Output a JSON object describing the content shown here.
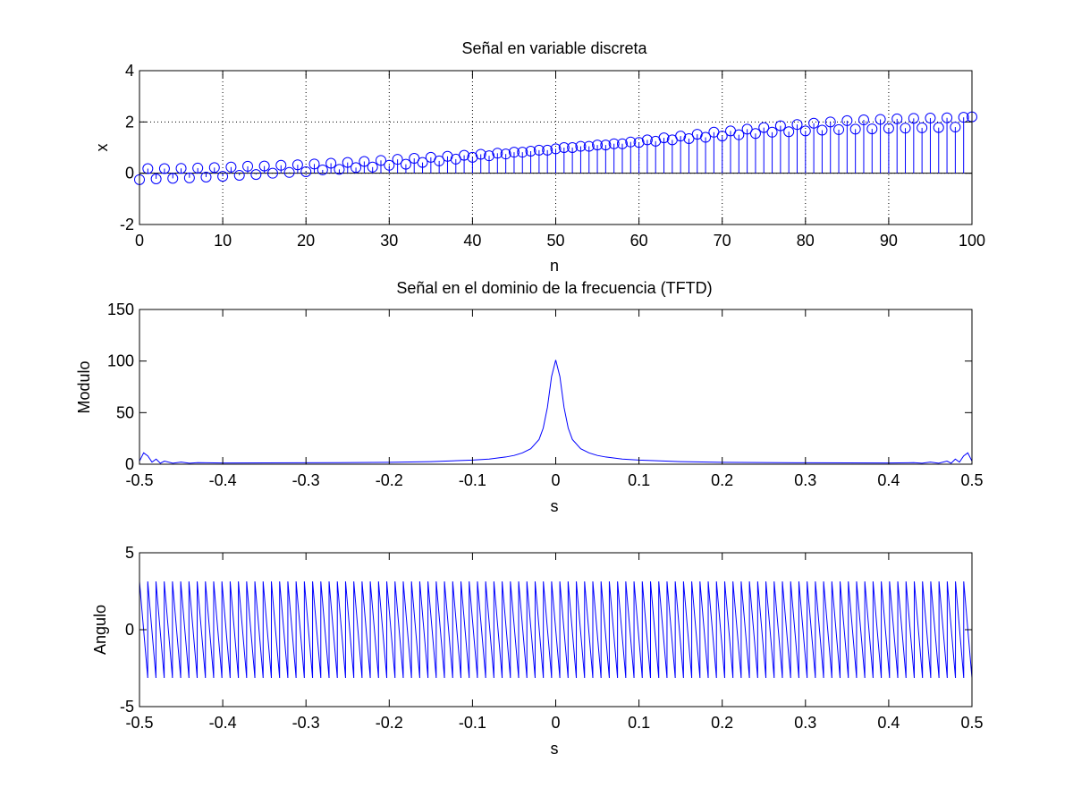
{
  "chart_data": [
    {
      "type": "stem",
      "title": "Señal en variable discreta",
      "xlabel": "n",
      "ylabel": "x",
      "xlim": [
        0,
        100
      ],
      "ylim": [
        -2,
        4
      ],
      "xticks": [
        0,
        10,
        20,
        30,
        40,
        50,
        60,
        70,
        80,
        90,
        100
      ],
      "yticks": [
        -2,
        0,
        2,
        4
      ],
      "grid": true,
      "marker": "circle",
      "color": "#0000ff",
      "series": [
        {
          "x": [
            0,
            1,
            2,
            3,
            4,
            5,
            6,
            7,
            8,
            9,
            10,
            11,
            12,
            13,
            14,
            15,
            16,
            17,
            18,
            19,
            20,
            21,
            22,
            23,
            24,
            25,
            26,
            27,
            28,
            29,
            30,
            31,
            32,
            33,
            34,
            35,
            36,
            37,
            38,
            39,
            40,
            41,
            42,
            43,
            44,
            45,
            46,
            47,
            48,
            49,
            50,
            51,
            52,
            53,
            54,
            55,
            56,
            57,
            58,
            59,
            60,
            61,
            62,
            63,
            64,
            65,
            66,
            67,
            68,
            69,
            70,
            71,
            72,
            73,
            74,
            75,
            76,
            77,
            78,
            79,
            80,
            81,
            82,
            83,
            84,
            85,
            86,
            87,
            88,
            89,
            90,
            91,
            92,
            93,
            94,
            95,
            96,
            97,
            98,
            99,
            100
          ],
          "y": [
            -0.25,
            0.18,
            -0.22,
            0.18,
            -0.2,
            0.19,
            -0.18,
            0.2,
            -0.15,
            0.22,
            -0.12,
            0.24,
            -0.08,
            0.27,
            -0.05,
            0.28,
            0.0,
            0.31,
            0.03,
            0.33,
            0.06,
            0.36,
            0.13,
            0.39,
            0.15,
            0.42,
            0.22,
            0.46,
            0.24,
            0.5,
            0.31,
            0.54,
            0.35,
            0.58,
            0.42,
            0.62,
            0.48,
            0.66,
            0.55,
            0.7,
            0.62,
            0.74,
            0.68,
            0.78,
            0.75,
            0.82,
            0.82,
            0.86,
            0.9,
            0.9,
            0.95,
            1.0,
            1.0,
            1.05,
            1.05,
            1.1,
            1.1,
            1.15,
            1.15,
            1.22,
            1.2,
            1.3,
            1.25,
            1.38,
            1.3,
            1.45,
            1.35,
            1.52,
            1.4,
            1.6,
            1.45,
            1.65,
            1.5,
            1.72,
            1.55,
            1.78,
            1.6,
            1.85,
            1.62,
            1.9,
            1.65,
            1.95,
            1.68,
            2.0,
            1.7,
            2.05,
            1.72,
            2.08,
            1.73,
            2.1,
            1.75,
            2.12,
            1.76,
            2.14,
            1.77,
            2.15,
            1.78,
            2.16,
            1.8,
            2.18,
            2.2
          ]
        }
      ]
    },
    {
      "type": "line",
      "title": "Señal en el dominio de la frecuencia (TFTD)",
      "xlabel": "s",
      "ylabel": "Modulo",
      "xlim": [
        -0.5,
        0.5
      ],
      "ylim": [
        0,
        150
      ],
      "xticks": [
        -0.5,
        -0.4,
        -0.3,
        -0.2,
        -0.1,
        0,
        0.1,
        0.2,
        0.3,
        0.4,
        0.5
      ],
      "yticks": [
        0,
        50,
        100,
        150
      ],
      "grid": false,
      "color": "#0000ff",
      "series": [
        {
          "x": [
            -0.5,
            -0.495,
            -0.49,
            -0.485,
            -0.48,
            -0.475,
            -0.47,
            -0.46,
            -0.45,
            -0.44,
            -0.43,
            -0.4,
            -0.3,
            -0.2,
            -0.15,
            -0.1,
            -0.08,
            -0.06,
            -0.05,
            -0.04,
            -0.03,
            -0.02,
            -0.015,
            -0.01,
            -0.005,
            0,
            0.005,
            0.01,
            0.015,
            0.02,
            0.03,
            0.04,
            0.05,
            0.06,
            0.08,
            0.1,
            0.15,
            0.2,
            0.3,
            0.4,
            0.43,
            0.44,
            0.45,
            0.46,
            0.47,
            0.475,
            0.48,
            0.485,
            0.49,
            0.495,
            0.5
          ],
          "y": [
            3,
            11,
            8,
            2,
            5,
            1,
            3,
            1,
            2,
            1,
            1.5,
            1.2,
            1.4,
            1.8,
            2.5,
            4,
            5,
            7,
            8.5,
            11,
            15,
            24,
            35,
            55,
            85,
            101,
            85,
            55,
            35,
            24,
            15,
            11,
            8.5,
            7,
            5,
            4,
            2.5,
            1.8,
            1.4,
            1.2,
            1.5,
            1,
            2,
            1,
            3,
            1,
            5,
            2,
            8,
            11,
            3
          ]
        }
      ]
    },
    {
      "type": "line",
      "title": "",
      "xlabel": "s",
      "ylabel": "Angulo",
      "xlim": [
        -0.5,
        0.5
      ],
      "ylim": [
        -5,
        5
      ],
      "xticks": [
        -0.5,
        -0.4,
        -0.3,
        -0.2,
        -0.1,
        0,
        0.1,
        0.2,
        0.3,
        0.4,
        0.5
      ],
      "yticks": [
        -5,
        0,
        5
      ],
      "grid": false,
      "color": "#0000ff",
      "series": [
        {
          "sawtooth_cycles": 101,
          "amplitude": 3.14,
          "x_range": [
            -0.5,
            0.5
          ]
        }
      ]
    }
  ]
}
